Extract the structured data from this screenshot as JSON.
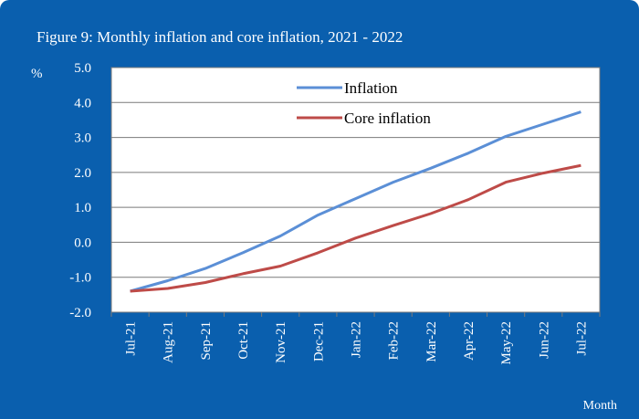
{
  "chart_data": {
    "type": "line",
    "title": "Figure 9: Monthly inflation  and core inflation, 2021 - 2022",
    "ylabel": "%",
    "xlabel": "Month",
    "ylim": [
      -2.0,
      5.0
    ],
    "y_ticks": [
      "5.0",
      "4.0",
      "3.0",
      "2.0",
      "1.0",
      "0.0",
      "-1.0",
      "-2.0"
    ],
    "categories": [
      "Jul-21",
      "Aug-21",
      "Sep-21",
      "Oct-21",
      "Nov-21",
      "Dec-21",
      "Jan-22",
      "Feb-22",
      "Mar-22",
      "Apr-22",
      "May-22",
      "Jun-22",
      "Jul-22"
    ],
    "series": [
      {
        "name": "Inflation",
        "color": "#5b8fd6",
        "values": [
          -1.4,
          -1.1,
          -0.75,
          -0.3,
          0.18,
          0.78,
          1.25,
          1.72,
          2.12,
          2.55,
          3.03,
          3.38,
          3.73
        ]
      },
      {
        "name": "Core inflation",
        "color": "#be4b48",
        "values": [
          -1.4,
          -1.32,
          -1.15,
          -0.9,
          -0.68,
          -0.3,
          0.12,
          0.48,
          0.82,
          1.22,
          1.72,
          1.98,
          2.2
        ]
      }
    ],
    "grid": true,
    "legend_position": "top-center"
  }
}
